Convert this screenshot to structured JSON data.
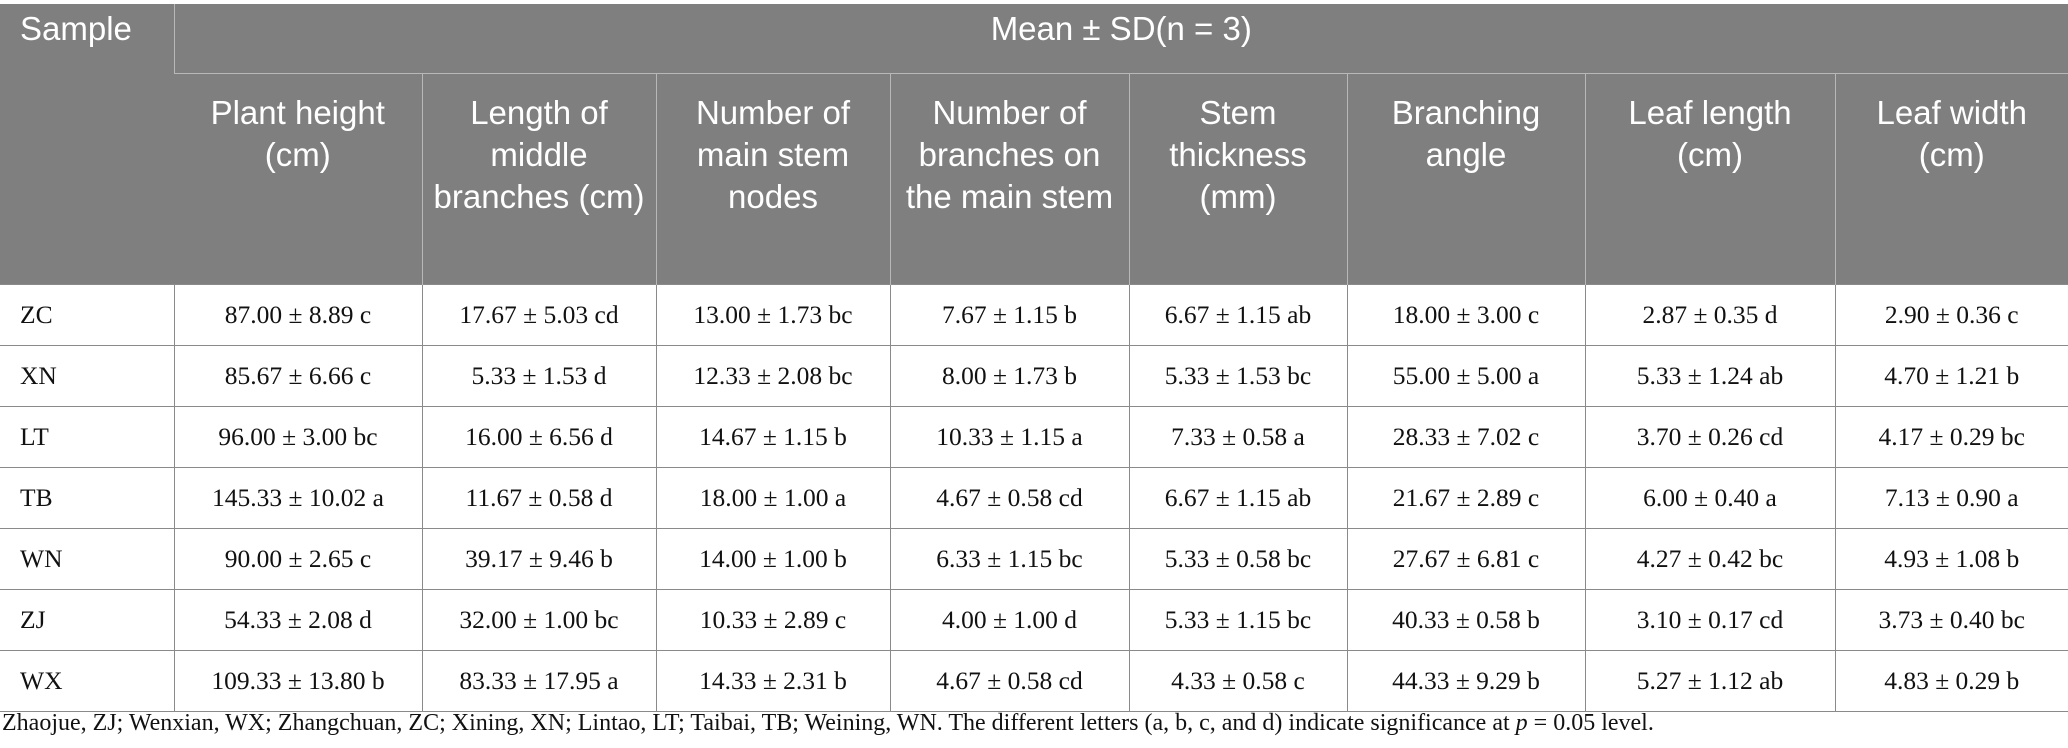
{
  "table": {
    "sample_header": "Sample",
    "group_header": "Mean ± SD(n = 3)",
    "columns": [
      "Plant height (cm)",
      "Length of middle branches (cm)",
      "Number of main stem nodes",
      "Number of branches on the main stem",
      "Stem thickness (mm)",
      "Branching angle",
      "Leaf length (cm)",
      "Leaf width (cm)"
    ],
    "rows": [
      {
        "sample": "ZC",
        "values": [
          "87.00 ± 8.89 c",
          "17.67 ± 5.03 cd",
          "13.00 ± 1.73 bc",
          "7.67 ± 1.15 b",
          "6.67 ± 1.15 ab",
          "18.00 ± 3.00 c",
          "2.87 ± 0.35 d",
          "2.90 ± 0.36 c"
        ]
      },
      {
        "sample": "XN",
        "values": [
          "85.67 ± 6.66 c",
          "5.33 ± 1.53 d",
          "12.33 ± 2.08 bc",
          "8.00 ± 1.73 b",
          "5.33 ± 1.53 bc",
          "55.00 ± 5.00 a",
          "5.33 ± 1.24 ab",
          "4.70 ± 1.21 b"
        ]
      },
      {
        "sample": "LT",
        "values": [
          "96.00 ± 3.00 bc",
          "16.00 ± 6.56 d",
          "14.67 ± 1.15 b",
          "10.33 ± 1.15 a",
          "7.33 ± 0.58 a",
          "28.33 ± 7.02 c",
          "3.70 ± 0.26 cd",
          "4.17 ± 0.29 bc"
        ]
      },
      {
        "sample": "TB",
        "values": [
          "145.33 ± 10.02 a",
          "11.67 ± 0.58 d",
          "18.00 ± 1.00 a",
          "4.67 ± 0.58 cd",
          "6.67 ± 1.15 ab",
          "21.67 ± 2.89 c",
          "6.00 ± 0.40 a",
          "7.13 ± 0.90 a"
        ]
      },
      {
        "sample": "WN",
        "values": [
          "90.00 ± 2.65 c",
          "39.17 ± 9.46 b",
          "14.00 ± 1.00 b",
          "6.33 ± 1.15 bc",
          "5.33 ± 0.58 bc",
          "27.67 ± 6.81 c",
          "4.27 ± 0.42 bc",
          "4.93 ± 1.08 b"
        ]
      },
      {
        "sample": "ZJ",
        "values": [
          "54.33 ± 2.08 d",
          "32.00 ± 1.00 bc",
          "10.33 ± 2.89 c",
          "4.00 ± 1.00 d",
          "5.33 ± 1.15 bc",
          "40.33 ± 0.58 b",
          "3.10 ± 0.17 cd",
          "3.73 ± 0.40 bc"
        ]
      },
      {
        "sample": "WX",
        "values": [
          "109.33 ± 13.80 b",
          "83.33 ± 17.95 a",
          "14.33 ± 2.31 b",
          "4.67 ± 0.58 cd",
          "4.33 ± 0.58 c",
          "44.33 ± 9.29 b",
          "5.27 ± 1.12 ab",
          "4.83 ± 0.29 b"
        ]
      }
    ]
  },
  "footnote": {
    "before": "Zhaojue, ZJ; Wenxian, WX; Zhangchuan, ZC; Xining, XN; Lintao, LT; Taibai, TB; Weining, WN. The different letters (a, b, c, and d) indicate significance at ",
    "p": "p",
    "after": " = 0.05 level."
  },
  "colors": {
    "header_bg": "#7f7f7f",
    "header_text": "#ffffff",
    "grid": "#8a8a8a"
  }
}
